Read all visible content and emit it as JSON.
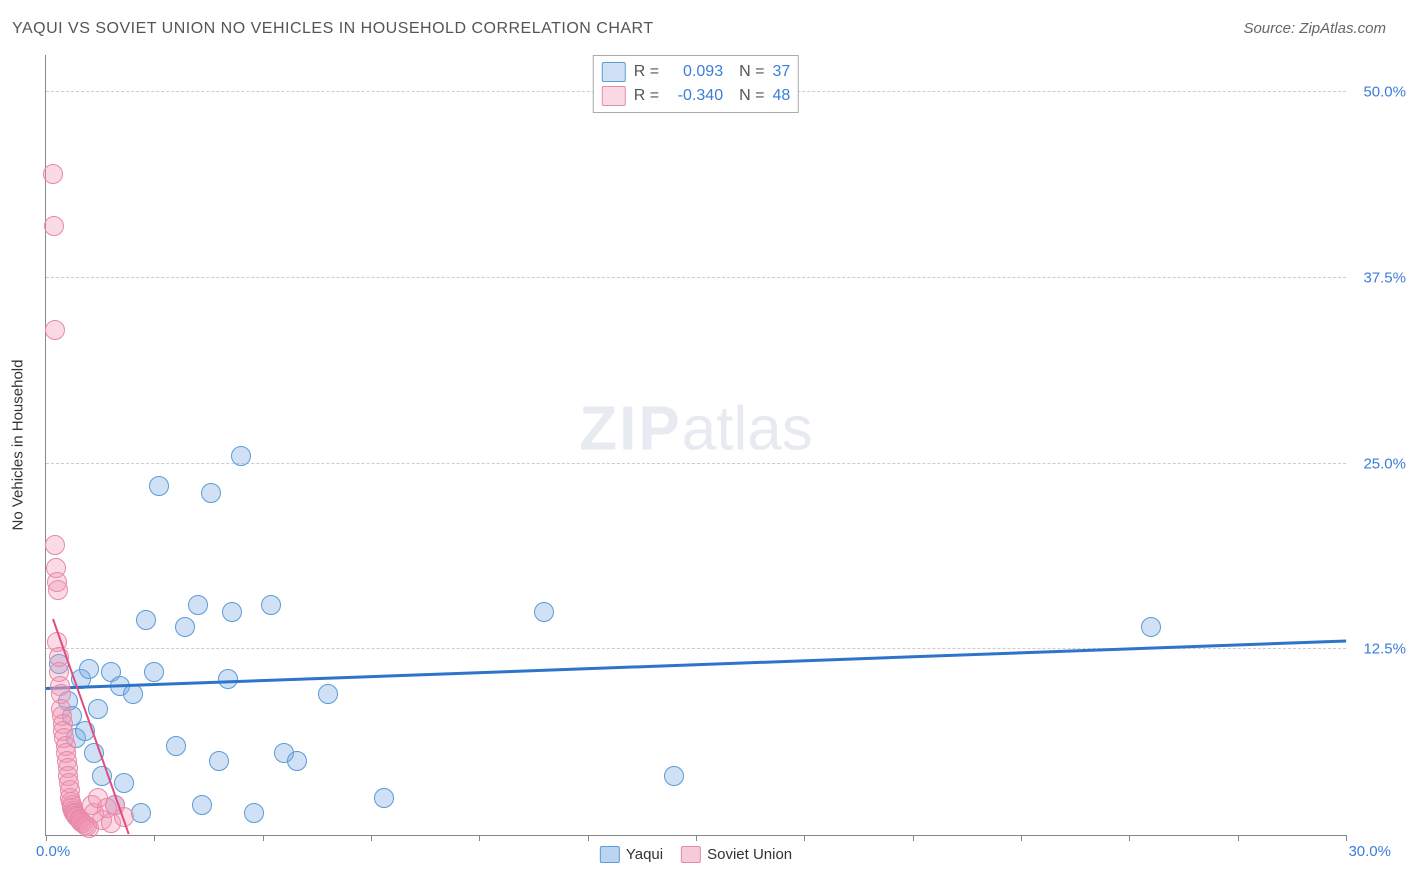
{
  "title": "YAQUI VS SOVIET UNION NO VEHICLES IN HOUSEHOLD CORRELATION CHART",
  "source": "Source: ZipAtlas.com",
  "y_axis_title": "No Vehicles in Household",
  "watermark_zip": "ZIP",
  "watermark_atlas": "atlas",
  "x_label_min": "0.0%",
  "x_label_max": "30.0%",
  "chart": {
    "type": "scatter",
    "xlim": [
      0,
      30
    ],
    "ylim": [
      0,
      52.5
    ],
    "x_tick_positions": [
      0,
      2.5,
      5,
      7.5,
      10,
      12.5,
      15,
      17.5,
      20,
      22.5,
      25,
      27.5,
      30
    ],
    "y_gridlines": [
      {
        "value": 12.5,
        "label": "12.5%"
      },
      {
        "value": 25.0,
        "label": "25.0%"
      },
      {
        "value": 37.5,
        "label": "37.5%"
      },
      {
        "value": 50.0,
        "label": "50.0%"
      }
    ],
    "marker_radius": 9,
    "series": [
      {
        "name": "Yaqui",
        "fill": "rgba(120,170,230,0.35)",
        "stroke": "#5b9bd5",
        "trend_color": "#2e75c9",
        "trend_width": 2.5,
        "r_value": "0.093",
        "n_value": "37",
        "trend": {
          "x1": 0,
          "y1": 9.8,
          "x2": 30,
          "y2": 13.0
        },
        "points": [
          {
            "x": 0.3,
            "y": 11.5
          },
          {
            "x": 0.5,
            "y": 9.0
          },
          {
            "x": 0.6,
            "y": 8.0
          },
          {
            "x": 0.7,
            "y": 6.5
          },
          {
            "x": 0.8,
            "y": 10.5
          },
          {
            "x": 0.9,
            "y": 7.0
          },
          {
            "x": 1.0,
            "y": 11.2
          },
          {
            "x": 1.1,
            "y": 5.5
          },
          {
            "x": 1.2,
            "y": 8.5
          },
          {
            "x": 1.3,
            "y": 4.0
          },
          {
            "x": 1.5,
            "y": 11.0
          },
          {
            "x": 1.6,
            "y": 2.0
          },
          {
            "x": 1.7,
            "y": 10.0
          },
          {
            "x": 1.8,
            "y": 3.5
          },
          {
            "x": 2.0,
            "y": 9.5
          },
          {
            "x": 2.2,
            "y": 1.5
          },
          {
            "x": 2.3,
            "y": 14.5
          },
          {
            "x": 2.5,
            "y": 11.0
          },
          {
            "x": 2.6,
            "y": 23.5
          },
          {
            "x": 3.0,
            "y": 6.0
          },
          {
            "x": 3.2,
            "y": 14.0
          },
          {
            "x": 3.5,
            "y": 15.5
          },
          {
            "x": 3.6,
            "y": 2.0
          },
          {
            "x": 3.8,
            "y": 23.0
          },
          {
            "x": 4.0,
            "y": 5.0
          },
          {
            "x": 4.2,
            "y": 10.5
          },
          {
            "x": 4.3,
            "y": 15.0
          },
          {
            "x": 4.5,
            "y": 25.5
          },
          {
            "x": 4.8,
            "y": 1.5
          },
          {
            "x": 5.2,
            "y": 15.5
          },
          {
            "x": 5.5,
            "y": 5.5
          },
          {
            "x": 5.8,
            "y": 5.0
          },
          {
            "x": 6.5,
            "y": 9.5
          },
          {
            "x": 7.8,
            "y": 2.5
          },
          {
            "x": 11.5,
            "y": 15.0
          },
          {
            "x": 14.5,
            "y": 4.0
          },
          {
            "x": 25.5,
            "y": 14.0
          }
        ]
      },
      {
        "name": "Soviet Union",
        "fill": "rgba(240,150,180,0.35)",
        "stroke": "#e68aa8",
        "trend_color": "#e04c7f",
        "trend_width": 2,
        "r_value": "-0.340",
        "n_value": "48",
        "trend": {
          "x1": 0.15,
          "y1": 14.5,
          "x2": 1.9,
          "y2": 0
        },
        "points": [
          {
            "x": 0.15,
            "y": 44.5
          },
          {
            "x": 0.18,
            "y": 41.0
          },
          {
            "x": 0.2,
            "y": 34.0
          },
          {
            "x": 0.2,
            "y": 19.5
          },
          {
            "x": 0.22,
            "y": 18.0
          },
          {
            "x": 0.25,
            "y": 17.0
          },
          {
            "x": 0.25,
            "y": 13.0
          },
          {
            "x": 0.28,
            "y": 16.5
          },
          {
            "x": 0.3,
            "y": 12.0
          },
          {
            "x": 0.3,
            "y": 11.0
          },
          {
            "x": 0.32,
            "y": 10.0
          },
          {
            "x": 0.35,
            "y": 9.5
          },
          {
            "x": 0.35,
            "y": 8.5
          },
          {
            "x": 0.38,
            "y": 8.0
          },
          {
            "x": 0.4,
            "y": 7.5
          },
          {
            "x": 0.4,
            "y": 7.0
          },
          {
            "x": 0.42,
            "y": 6.5
          },
          {
            "x": 0.45,
            "y": 6.0
          },
          {
            "x": 0.45,
            "y": 5.5
          },
          {
            "x": 0.48,
            "y": 5.0
          },
          {
            "x": 0.5,
            "y": 4.5
          },
          {
            "x": 0.5,
            "y": 4.0
          },
          {
            "x": 0.52,
            "y": 3.5
          },
          {
            "x": 0.55,
            "y": 3.0
          },
          {
            "x": 0.55,
            "y": 2.5
          },
          {
            "x": 0.58,
            "y": 2.2
          },
          {
            "x": 0.6,
            "y": 2.0
          },
          {
            "x": 0.6,
            "y": 1.8
          },
          {
            "x": 0.62,
            "y": 1.6
          },
          {
            "x": 0.65,
            "y": 1.5
          },
          {
            "x": 0.68,
            "y": 1.4
          },
          {
            "x": 0.7,
            "y": 1.3
          },
          {
            "x": 0.72,
            "y": 1.2
          },
          {
            "x": 0.75,
            "y": 1.1
          },
          {
            "x": 0.78,
            "y": 1.0
          },
          {
            "x": 0.8,
            "y": 0.9
          },
          {
            "x": 0.85,
            "y": 0.8
          },
          {
            "x": 0.9,
            "y": 0.7
          },
          {
            "x": 0.95,
            "y": 0.6
          },
          {
            "x": 1.0,
            "y": 0.5
          },
          {
            "x": 1.05,
            "y": 2.0
          },
          {
            "x": 1.1,
            "y": 1.5
          },
          {
            "x": 1.2,
            "y": 2.5
          },
          {
            "x": 1.3,
            "y": 1.0
          },
          {
            "x": 1.4,
            "y": 1.8
          },
          {
            "x": 1.5,
            "y": 0.8
          },
          {
            "x": 1.6,
            "y": 2.0
          },
          {
            "x": 1.8,
            "y": 1.2
          }
        ]
      }
    ]
  },
  "legend_top": {
    "r_label": "R =",
    "n_label": "N =",
    "value_color": "#3b7dd8",
    "label_color": "#555"
  },
  "legend_bottom": [
    {
      "label": "Yaqui",
      "fill": "rgba(120,170,230,0.5)",
      "stroke": "#5b9bd5"
    },
    {
      "label": "Soviet Union",
      "fill": "rgba(240,150,180,0.5)",
      "stroke": "#e68aa8"
    }
  ]
}
